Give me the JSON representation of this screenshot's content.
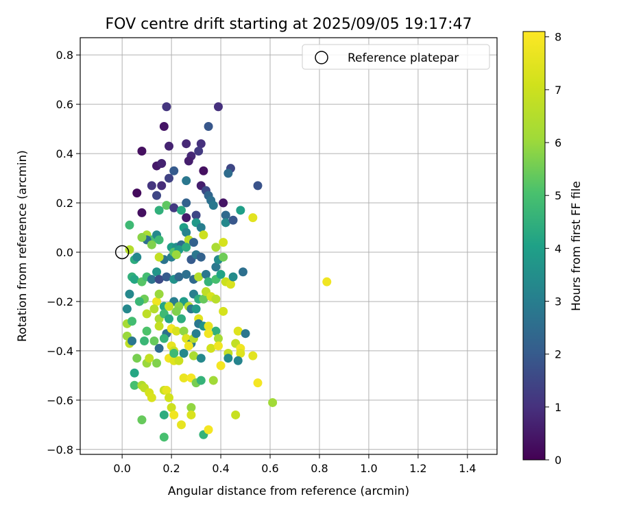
{
  "chart_data": {
    "type": "scatter",
    "title": "FOV centre drift starting at 2025/09/05 19:17:47",
    "xlabel": "Angular distance from reference (arcmin)",
    "ylabel": "Rotation from reference (arcmin)",
    "xlim": [
      -0.17,
      1.52
    ],
    "ylim": [
      -0.82,
      0.87
    ],
    "xticks": [
      "0.0",
      "0.2",
      "0.4",
      "0.6",
      "0.8",
      "1.0",
      "1.2",
      "1.4"
    ],
    "xtick_values": [
      0.0,
      0.2,
      0.4,
      0.6,
      0.8,
      1.0,
      1.2,
      1.4
    ],
    "yticks": [
      "−0.8",
      "−0.6",
      "−0.4",
      "−0.2",
      "0.0",
      "0.2",
      "0.4",
      "0.6",
      "0.8"
    ],
    "ytick_values": [
      -0.8,
      -0.6,
      -0.4,
      -0.2,
      0.0,
      0.2,
      0.4,
      0.6,
      0.8
    ],
    "grid": true,
    "legend": {
      "label": "Reference platepar",
      "location": "top-right"
    },
    "reference_point": {
      "x": 0.0,
      "y": 0.0
    },
    "colorbar": {
      "label": "Hours from first FF file",
      "min": 0,
      "max": 8.1,
      "ticks": [
        "0",
        "1",
        "2",
        "3",
        "4",
        "5",
        "6",
        "7",
        "8"
      ],
      "tick_values": [
        0,
        1,
        2,
        3,
        4,
        5,
        6,
        7,
        8
      ],
      "colormap": "viridis"
    },
    "series": [
      {
        "name": "FOV centre drift",
        "points": [
          [
            0.18,
            0.59,
            1.1
          ],
          [
            0.39,
            0.59,
            1.0
          ],
          [
            0.17,
            0.51,
            0.4
          ],
          [
            0.35,
            0.51,
            1.9
          ],
          [
            0.08,
            0.41,
            0.3
          ],
          [
            0.19,
            0.43,
            0.7
          ],
          [
            0.26,
            0.44,
            0.8
          ],
          [
            0.32,
            0.44,
            1.0
          ],
          [
            0.31,
            0.41,
            1.2
          ],
          [
            0.28,
            0.39,
            0.8
          ],
          [
            0.14,
            0.35,
            0.5
          ],
          [
            0.16,
            0.36,
            0.7
          ],
          [
            0.21,
            0.33,
            2.0
          ],
          [
            0.27,
            0.37,
            0.6
          ],
          [
            0.33,
            0.33,
            0.3
          ],
          [
            0.44,
            0.34,
            1.5
          ],
          [
            0.43,
            0.32,
            2.5
          ],
          [
            0.06,
            0.24,
            0.2
          ],
          [
            0.12,
            0.27,
            1.1
          ],
          [
            0.16,
            0.27,
            0.9
          ],
          [
            0.19,
            0.3,
            1.4
          ],
          [
            0.26,
            0.29,
            2.8
          ],
          [
            0.32,
            0.27,
            0.6
          ],
          [
            0.34,
            0.25,
            1.6
          ],
          [
            0.55,
            0.27,
            1.8
          ],
          [
            0.35,
            0.23,
            2.3
          ],
          [
            0.36,
            0.21,
            2.6
          ],
          [
            0.37,
            0.19,
            2.8
          ],
          [
            0.41,
            0.2,
            0.4
          ],
          [
            0.14,
            0.23,
            1.5
          ],
          [
            0.18,
            0.19,
            5.3
          ],
          [
            0.21,
            0.18,
            1.2
          ],
          [
            0.26,
            0.2,
            2.2
          ],
          [
            0.15,
            0.17,
            4.5
          ],
          [
            0.24,
            0.17,
            4.3
          ],
          [
            0.08,
            0.16,
            0.3
          ],
          [
            0.26,
            0.14,
            0.5
          ],
          [
            0.3,
            0.15,
            1.5
          ],
          [
            0.42,
            0.15,
            2.4
          ],
          [
            0.42,
            0.12,
            3.3
          ],
          [
            0.45,
            0.13,
            1.9
          ],
          [
            0.48,
            0.17,
            4.0
          ],
          [
            0.53,
            0.14,
            7.5
          ],
          [
            0.03,
            0.11,
            4.8
          ],
          [
            0.3,
            0.12,
            3.8
          ],
          [
            0.25,
            0.1,
            4.0
          ],
          [
            0.26,
            0.08,
            3.2
          ],
          [
            0.32,
            0.1,
            3.0
          ],
          [
            0.1,
            0.07,
            6.3
          ],
          [
            0.12,
            0.05,
            5.0
          ],
          [
            0.14,
            0.07,
            3.3
          ],
          [
            0.1,
            0.05,
            2.6
          ],
          [
            0.08,
            0.06,
            5.8
          ],
          [
            0.15,
            0.05,
            4.8
          ],
          [
            0.2,
            0.02,
            4.0
          ],
          [
            0.22,
            0.02,
            3.5
          ],
          [
            0.24,
            0.03,
            2.5
          ],
          [
            0.27,
            0.05,
            6.6
          ],
          [
            0.29,
            0.04,
            2.2
          ],
          [
            0.33,
            0.07,
            7.0
          ],
          [
            0.38,
            0.02,
            6.3
          ],
          [
            0.41,
            0.04,
            7.2
          ],
          [
            0.12,
            0.03,
            5.7
          ],
          [
            0.03,
            0.01,
            6.5
          ],
          [
            0.05,
            -0.03,
            4.4
          ],
          [
            0.06,
            -0.02,
            3.3
          ],
          [
            0.17,
            -0.03,
            2.7
          ],
          [
            0.2,
            -0.02,
            3.0
          ],
          [
            0.21,
            0.0,
            5.2
          ],
          [
            0.23,
            0.01,
            3.8
          ],
          [
            0.26,
            0.02,
            4.4
          ],
          [
            0.28,
            -0.03,
            2.0
          ],
          [
            0.3,
            -0.01,
            2.8
          ],
          [
            0.32,
            -0.02,
            2.2
          ],
          [
            0.15,
            -0.02,
            6.8
          ],
          [
            0.22,
            -0.01,
            6.0
          ],
          [
            0.38,
            -0.06,
            2.8
          ],
          [
            0.39,
            -0.03,
            3.4
          ],
          [
            0.41,
            -0.02,
            5.5
          ],
          [
            0.49,
            -0.08,
            2.6
          ],
          [
            0.04,
            -0.1,
            4.5
          ],
          [
            0.05,
            -0.11,
            4.2
          ],
          [
            0.08,
            -0.12,
            5.2
          ],
          [
            0.1,
            -0.1,
            4.9
          ],
          [
            0.12,
            -0.11,
            2.7
          ],
          [
            0.14,
            -0.08,
            3.7
          ],
          [
            0.15,
            -0.11,
            1.6
          ],
          [
            0.18,
            -0.1,
            2.0
          ],
          [
            0.21,
            -0.11,
            3.6
          ],
          [
            0.23,
            -0.1,
            2.4
          ],
          [
            0.26,
            -0.09,
            2.6
          ],
          [
            0.29,
            -0.11,
            2.4
          ],
          [
            0.31,
            -0.1,
            6.5
          ],
          [
            0.34,
            -0.09,
            2.8
          ],
          [
            0.35,
            -0.12,
            4.6
          ],
          [
            0.38,
            -0.11,
            5.0
          ],
          [
            0.4,
            -0.09,
            4.1
          ],
          [
            0.42,
            -0.12,
            7.0
          ],
          [
            0.44,
            -0.13,
            7.3
          ],
          [
            0.45,
            -0.1,
            3.4
          ],
          [
            0.83,
            -0.12,
            7.8
          ],
          [
            0.03,
            -0.17,
            3.3
          ],
          [
            0.09,
            -0.19,
            5.5
          ],
          [
            0.14,
            -0.2,
            7.8
          ],
          [
            0.15,
            -0.17,
            6.0
          ],
          [
            0.17,
            -0.22,
            4.2
          ],
          [
            0.21,
            -0.2,
            3.0
          ],
          [
            0.25,
            -0.2,
            3.9
          ],
          [
            0.27,
            -0.22,
            6.5
          ],
          [
            0.29,
            -0.17,
            3.0
          ],
          [
            0.31,
            -0.19,
            4.4
          ],
          [
            0.33,
            -0.19,
            5.4
          ],
          [
            0.34,
            -0.16,
            6.7
          ],
          [
            0.36,
            -0.18,
            7.2
          ],
          [
            0.38,
            -0.19,
            6.6
          ],
          [
            0.41,
            -0.24,
            7.2
          ],
          [
            0.07,
            -0.2,
            4.7
          ],
          [
            0.02,
            -0.23,
            3.3
          ],
          [
            0.13,
            -0.23,
            6.5
          ],
          [
            0.19,
            -0.22,
            6.9
          ],
          [
            0.23,
            -0.22,
            5.8
          ],
          [
            0.28,
            -0.23,
            2.8
          ],
          [
            0.3,
            -0.23,
            3.8
          ],
          [
            0.02,
            -0.29,
            6.2
          ],
          [
            0.04,
            -0.28,
            4.9
          ],
          [
            0.1,
            -0.25,
            6.7
          ],
          [
            0.15,
            -0.27,
            6.3
          ],
          [
            0.17,
            -0.25,
            4.8
          ],
          [
            0.19,
            -0.27,
            4.2
          ],
          [
            0.22,
            -0.24,
            5.7
          ],
          [
            0.24,
            -0.27,
            4.4
          ],
          [
            0.31,
            -0.27,
            7.5
          ],
          [
            0.31,
            -0.29,
            2.8
          ],
          [
            0.33,
            -0.3,
            3.6
          ],
          [
            0.35,
            -0.3,
            7.6
          ],
          [
            0.38,
            -0.32,
            4.5
          ],
          [
            0.02,
            -0.34,
            6.0
          ],
          [
            0.03,
            -0.37,
            6.7
          ],
          [
            0.04,
            -0.36,
            2.8
          ],
          [
            0.1,
            -0.32,
            5.1
          ],
          [
            0.15,
            -0.3,
            6.8
          ],
          [
            0.18,
            -0.33,
            2.6
          ],
          [
            0.2,
            -0.31,
            7.9
          ],
          [
            0.22,
            -0.32,
            7.3
          ],
          [
            0.25,
            -0.32,
            5.9
          ],
          [
            0.26,
            -0.35,
            7.4
          ],
          [
            0.28,
            -0.37,
            2.9
          ],
          [
            0.29,
            -0.35,
            6.6
          ],
          [
            0.3,
            -0.33,
            3.0
          ],
          [
            0.35,
            -0.33,
            7.8
          ],
          [
            0.39,
            -0.35,
            6.2
          ],
          [
            0.47,
            -0.32,
            7.4
          ],
          [
            0.5,
            -0.33,
            2.8
          ],
          [
            0.09,
            -0.36,
            4.7
          ],
          [
            0.13,
            -0.36,
            5.4
          ],
          [
            0.15,
            -0.39,
            2.5
          ],
          [
            0.17,
            -0.35,
            4.6
          ],
          [
            0.2,
            -0.38,
            7.6
          ],
          [
            0.21,
            -0.4,
            7.0
          ],
          [
            0.25,
            -0.41,
            3.3
          ],
          [
            0.27,
            -0.38,
            7.8
          ],
          [
            0.36,
            -0.39,
            7.1
          ],
          [
            0.39,
            -0.38,
            7.8
          ],
          [
            0.43,
            -0.41,
            6.8
          ],
          [
            0.46,
            -0.37,
            6.8
          ],
          [
            0.48,
            -0.39,
            7.8
          ],
          [
            0.48,
            -0.41,
            7.4
          ],
          [
            0.06,
            -0.43,
            5.6
          ],
          [
            0.1,
            -0.45,
            6.0
          ],
          [
            0.11,
            -0.43,
            6.8
          ],
          [
            0.14,
            -0.45,
            5.7
          ],
          [
            0.19,
            -0.43,
            7.8
          ],
          [
            0.21,
            -0.44,
            7.4
          ],
          [
            0.21,
            -0.41,
            4.8
          ],
          [
            0.23,
            -0.44,
            7.0
          ],
          [
            0.29,
            -0.42,
            6.3
          ],
          [
            0.32,
            -0.43,
            3.3
          ],
          [
            0.4,
            -0.46,
            7.9
          ],
          [
            0.43,
            -0.43,
            3.4
          ],
          [
            0.47,
            -0.44,
            3.2
          ],
          [
            0.53,
            -0.42,
            7.5
          ],
          [
            0.05,
            -0.49,
            4.2
          ],
          [
            0.05,
            -0.54,
            5.0
          ],
          [
            0.08,
            -0.54,
            6.4
          ],
          [
            0.09,
            -0.55,
            6.7
          ],
          [
            0.11,
            -0.57,
            7.2
          ],
          [
            0.12,
            -0.59,
            7.3
          ],
          [
            0.17,
            -0.56,
            6.9
          ],
          [
            0.18,
            -0.56,
            7.6
          ],
          [
            0.25,
            -0.51,
            7.7
          ],
          [
            0.28,
            -0.51,
            7.9
          ],
          [
            0.3,
            -0.53,
            5.6
          ],
          [
            0.32,
            -0.52,
            4.6
          ],
          [
            0.37,
            -0.52,
            6.1
          ],
          [
            0.55,
            -0.53,
            7.9
          ],
          [
            0.61,
            -0.61,
            6.1
          ],
          [
            0.08,
            -0.68,
            5.4
          ],
          [
            0.17,
            -0.66,
            4.4
          ],
          [
            0.2,
            -0.63,
            7.0
          ],
          [
            0.21,
            -0.66,
            7.8
          ],
          [
            0.24,
            -0.7,
            7.6
          ],
          [
            0.28,
            -0.63,
            5.9
          ],
          [
            0.28,
            -0.66,
            7.3
          ],
          [
            0.33,
            -0.74,
            4.6
          ],
          [
            0.35,
            -0.72,
            7.9
          ],
          [
            0.46,
            -0.66,
            6.9
          ],
          [
            0.17,
            -0.75,
            5.0
          ],
          [
            0.19,
            -0.59,
            7.1
          ]
        ]
      }
    ]
  }
}
